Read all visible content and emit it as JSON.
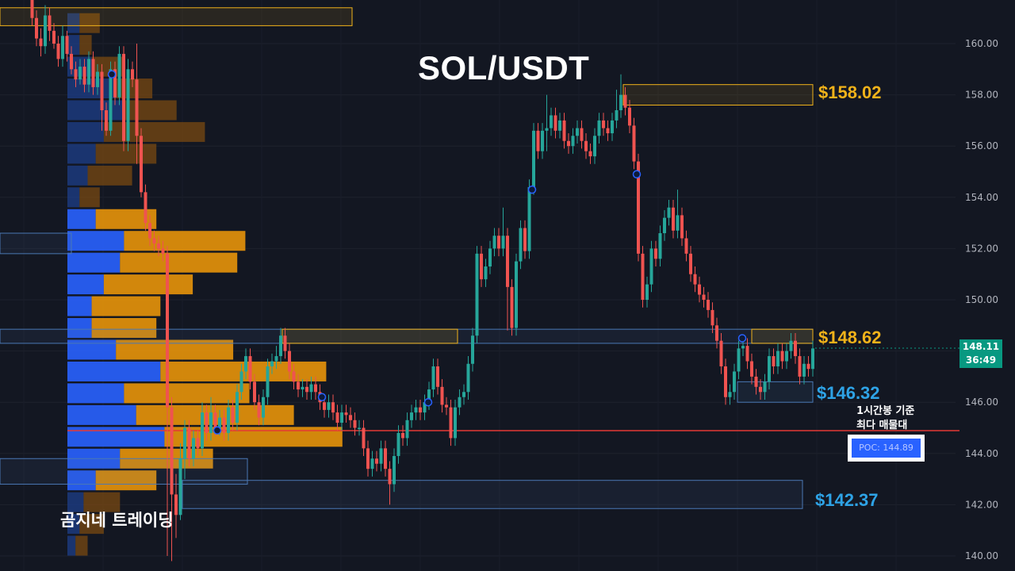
{
  "chart_data": {
    "type": "candlestick",
    "title": "SOL/USDT",
    "watermark": "곰지네 트레이딩",
    "ylim": [
      139.8,
      161.8
    ],
    "y_ticks": [
      "160.00",
      "158.00",
      "156.00",
      "154.00",
      "152.00",
      "150.00",
      "148.00",
      "146.00",
      "144.00",
      "142.00",
      "140.00"
    ],
    "grid": true,
    "current_price": {
      "price": "148.11",
      "countdown": "36:49",
      "value": 148.11
    },
    "levels": [
      {
        "name": "resistance-158",
        "label": "$158.02",
        "price": 158.02,
        "color": "#f0b21a"
      },
      {
        "name": "resistance-148",
        "label": "$148.62",
        "price": 148.62,
        "color": "#f0b21a"
      },
      {
        "name": "support-146",
        "label": "$146.32",
        "price": 146.32,
        "color": "#2ea3e6"
      },
      {
        "name": "support-142",
        "label": "$142.37",
        "price": 142.37,
        "color": "#2ea3e6"
      }
    ],
    "poc": {
      "value": 144.89,
      "label": "POC: 144.89",
      "note_line1": "1시간봉 기준",
      "note_line2": "최다 매물대",
      "color": "#e53935"
    },
    "volume_profile": {
      "bin_prices": [
        160.8,
        159.95,
        159.1,
        158.25,
        157.4,
        156.55,
        155.7,
        154.85,
        154.0,
        153.15,
        152.3,
        151.45,
        150.6,
        149.75,
        148.9,
        148.05,
        147.2,
        146.35,
        145.5,
        144.65,
        143.8,
        142.95,
        142.1,
        141.25,
        140.4
      ],
      "buy": [
        3,
        3,
        6,
        12,
        14,
        9,
        7,
        5,
        3,
        7,
        14,
        13,
        9,
        6,
        6,
        12,
        23,
        14,
        17,
        24,
        13,
        7,
        4,
        3,
        2
      ],
      "sell": [
        5,
        3,
        8,
        9,
        13,
        25,
        15,
        11,
        5,
        15,
        30,
        29,
        22,
        17,
        16,
        29,
        41,
        31,
        39,
        44,
        23,
        15,
        9,
        6,
        3
      ]
    },
    "candles": [
      [
        40.5,
        161.8,
        161.0,
        162.0,
        160.7
      ],
      [
        46.0,
        161.0,
        160.2,
        161.3,
        159.9
      ],
      [
        51.5,
        160.2,
        159.9,
        160.6,
        159.5
      ],
      [
        57.0,
        159.9,
        161.1,
        161.5,
        159.6
      ],
      [
        62.5,
        161.1,
        160.5,
        161.4,
        160.1
      ],
      [
        68.0,
        160.5,
        160.0,
        160.8,
        159.8
      ],
      [
        73.5,
        160.0,
        159.4,
        160.3,
        159.1
      ],
      [
        79.0,
        159.4,
        160.3,
        160.7,
        159.1
      ],
      [
        84.5,
        160.3,
        159.6,
        160.5,
        159.3
      ],
      [
        90.0,
        159.6,
        159.0,
        159.9,
        158.8
      ],
      [
        95.5,
        159.0,
        158.6,
        159.3,
        158.3
      ],
      [
        101.0,
        158.6,
        159.1,
        159.4,
        158.4
      ],
      [
        106.5,
        159.1,
        158.4,
        159.4,
        158.1
      ],
      [
        112.0,
        158.4,
        159.4,
        159.7,
        158.1
      ],
      [
        117.5,
        159.4,
        158.3,
        159.7,
        158.0
      ],
      [
        123.0,
        158.3,
        158.9,
        159.2,
        158.0
      ],
      [
        128.5,
        158.9,
        157.4,
        159.2,
        156.6
      ],
      [
        134.0,
        157.4,
        156.6,
        157.7,
        156.4
      ],
      [
        139.5,
        156.6,
        159.0,
        159.3,
        156.4
      ],
      [
        145.0,
        159.0,
        157.9,
        159.3,
        157.6
      ],
      [
        150.5,
        157.9,
        159.6,
        159.9,
        157.6
      ],
      [
        156.0,
        159.6,
        156.2,
        159.9,
        155.8
      ],
      [
        161.5,
        156.2,
        159.0,
        159.4,
        155.8
      ],
      [
        167.0,
        159.0,
        158.6,
        159.3,
        158.3
      ],
      [
        172.5,
        158.6,
        156.4,
        160.0,
        155.3
      ],
      [
        178.0,
        156.4,
        154.2,
        156.7,
        154.0
      ],
      [
        183.5,
        154.2,
        153.0,
        154.5,
        152.7
      ],
      [
        189.0,
        153.0,
        152.4,
        153.3,
        152.1
      ],
      [
        194.5,
        152.4,
        152.2,
        152.7,
        151.9
      ],
      [
        200.0,
        152.2,
        152.0,
        152.5,
        151.7
      ],
      [
        205.5,
        152.0,
        151.8,
        152.3,
        151.5
      ],
      [
        211.0,
        151.8,
        145.8,
        152.1,
        140.0
      ],
      [
        216.5,
        145.8,
        142.4,
        146.2,
        139.8
      ],
      [
        222.0,
        142.4,
        141.6,
        143.2,
        140.7
      ],
      [
        227.5,
        141.6,
        143.8,
        144.4,
        141.4
      ],
      [
        233.0,
        143.8,
        145.0,
        145.3,
        143.0
      ],
      [
        238.5,
        145.0,
        143.8,
        145.3,
        143.5
      ],
      [
        244.0,
        143.8,
        144.6,
        144.9,
        143.5
      ],
      [
        249.5,
        144.6,
        144.2,
        144.9,
        143.9
      ],
      [
        255.0,
        144.2,
        145.6,
        146.0,
        143.9
      ],
      [
        260.5,
        145.6,
        144.8,
        145.9,
        144.5
      ],
      [
        266.0,
        144.8,
        145.6,
        146.2,
        144.5
      ],
      [
        271.5,
        145.6,
        145.0,
        145.9,
        144.7
      ],
      [
        277.0,
        145.0,
        145.4,
        145.7,
        144.7
      ],
      [
        282.5,
        145.4,
        144.8,
        145.7,
        144.5
      ],
      [
        288.0,
        144.8,
        145.8,
        146.1,
        144.5
      ],
      [
        293.5,
        145.8,
        145.2,
        146.1,
        144.9
      ],
      [
        299.0,
        145.2,
        146.4,
        146.7,
        144.9
      ],
      [
        304.5,
        146.4,
        147.2,
        147.5,
        146.1
      ],
      [
        310.0,
        147.2,
        147.8,
        148.1,
        146.9
      ],
      [
        315.5,
        147.8,
        146.8,
        148.1,
        146.5
      ],
      [
        321.0,
        146.8,
        146.0,
        147.1,
        145.7
      ],
      [
        326.5,
        146.0,
        145.4,
        146.3,
        145.1
      ],
      [
        332.0,
        145.4,
        146.2,
        146.5,
        145.1
      ],
      [
        337.5,
        146.2,
        147.4,
        147.7,
        145.9
      ],
      [
        343.0,
        147.4,
        147.6,
        147.9,
        147.1
      ],
      [
        348.5,
        147.6,
        147.8,
        148.2,
        147.3
      ],
      [
        354.0,
        147.8,
        148.6,
        148.9,
        147.5
      ],
      [
        359.5,
        148.6,
        148.0,
        148.9,
        147.7
      ],
      [
        365.0,
        148.0,
        147.2,
        148.3,
        146.9
      ],
      [
        370.5,
        147.2,
        146.8,
        147.5,
        146.5
      ],
      [
        376.0,
        146.8,
        146.5,
        147.1,
        146.2
      ],
      [
        381.5,
        146.5,
        146.6,
        146.9,
        146.2
      ],
      [
        387.0,
        146.6,
        146.4,
        146.9,
        146.1
      ],
      [
        392.5,
        146.4,
        146.7,
        147.0,
        146.1
      ],
      [
        398.0,
        146.7,
        146.4,
        147.0,
        146.1
      ],
      [
        403.5,
        146.4,
        146.0,
        146.7,
        145.7
      ],
      [
        409.0,
        146.0,
        145.7,
        146.3,
        145.4
      ],
      [
        414.5,
        145.7,
        146.0,
        146.3,
        145.4
      ],
      [
        420.0,
        146.0,
        145.6,
        146.3,
        145.3
      ],
      [
        425.5,
        145.6,
        145.2,
        145.9,
        144.9
      ],
      [
        431.0,
        145.2,
        145.6,
        145.9,
        144.9
      ],
      [
        436.5,
        145.6,
        145.5,
        145.9,
        145.2
      ],
      [
        442.0,
        145.5,
        145.3,
        145.8,
        145.0
      ],
      [
        447.5,
        145.3,
        145.0,
        145.6,
        144.7
      ],
      [
        453.0,
        145.0,
        145.0,
        145.3,
        144.7
      ],
      [
        458.5,
        145.0,
        144.2,
        145.3,
        143.9
      ],
      [
        464.0,
        144.2,
        143.4,
        144.5,
        143.1
      ],
      [
        469.5,
        143.4,
        143.8,
        144.1,
        143.1
      ],
      [
        475.0,
        143.8,
        143.6,
        144.1,
        143.3
      ],
      [
        480.5,
        143.6,
        144.2,
        144.5,
        143.3
      ],
      [
        486.0,
        144.2,
        143.4,
        144.5,
        143.1
      ],
      [
        491.5,
        143.4,
        142.8,
        143.7,
        142.0
      ],
      [
        497.0,
        142.8,
        143.9,
        144.2,
        142.5
      ],
      [
        502.5,
        143.9,
        144.8,
        145.1,
        143.6
      ],
      [
        508.0,
        144.8,
        144.6,
        145.1,
        144.3
      ],
      [
        513.5,
        144.6,
        145.3,
        145.6,
        144.3
      ],
      [
        519.0,
        145.3,
        145.6,
        145.9,
        145.0
      ],
      [
        524.5,
        145.6,
        145.8,
        146.1,
        145.3
      ],
      [
        530.0,
        145.8,
        145.6,
        146.1,
        145.3
      ],
      [
        535.5,
        145.6,
        146.0,
        146.3,
        145.3
      ],
      [
        541.0,
        146.0,
        146.5,
        146.8,
        145.7
      ],
      [
        546.5,
        146.5,
        147.4,
        147.7,
        146.2
      ],
      [
        552.0,
        147.4,
        146.6,
        147.7,
        146.3
      ],
      [
        557.5,
        146.6,
        145.9,
        146.9,
        145.6
      ],
      [
        563.0,
        145.9,
        145.8,
        146.2,
        145.5
      ],
      [
        568.5,
        145.8,
        144.6,
        146.1,
        144.3
      ],
      [
        574.0,
        144.6,
        145.8,
        146.1,
        144.3
      ],
      [
        579.5,
        145.8,
        146.2,
        146.5,
        145.5
      ],
      [
        585.0,
        146.2,
        146.4,
        146.7,
        145.9
      ],
      [
        590.5,
        146.4,
        147.5,
        147.8,
        146.1
      ],
      [
        596.0,
        147.5,
        148.6,
        148.9,
        147.2
      ],
      [
        601.5,
        148.6,
        151.8,
        152.1,
        148.3
      ],
      [
        607.0,
        151.8,
        150.8,
        152.1,
        150.5
      ],
      [
        612.5,
        150.8,
        151.3,
        151.6,
        150.5
      ],
      [
        618.0,
        151.3,
        152.0,
        152.3,
        151.0
      ],
      [
        623.5,
        152.0,
        152.5,
        152.8,
        151.7
      ],
      [
        629.0,
        152.5,
        152.0,
        152.8,
        151.7
      ],
      [
        634.5,
        152.0,
        152.5,
        153.6,
        151.7
      ],
      [
        640.0,
        152.5,
        150.5,
        152.8,
        148.8
      ],
      [
        645.5,
        150.5,
        148.9,
        150.8,
        148.6
      ],
      [
        651.0,
        148.9,
        151.5,
        151.8,
        148.6
      ],
      [
        656.5,
        151.5,
        152.8,
        153.1,
        151.2
      ],
      [
        662.0,
        152.8,
        151.9,
        153.1,
        151.6
      ],
      [
        667.5,
        151.9,
        154.4,
        154.7,
        151.6
      ],
      [
        673.0,
        154.4,
        156.6,
        156.9,
        154.1
      ],
      [
        678.5,
        156.6,
        155.8,
        156.9,
        155.5
      ],
      [
        684.0,
        155.8,
        156.6,
        156.9,
        155.5
      ],
      [
        689.5,
        156.6,
        156.7,
        158.0,
        155.8
      ],
      [
        695.0,
        156.7,
        157.2,
        157.5,
        156.4
      ],
      [
        700.5,
        157.2,
        156.6,
        157.5,
        156.3
      ],
      [
        706.0,
        156.6,
        157.0,
        157.3,
        156.3
      ],
      [
        711.5,
        157.0,
        156.2,
        157.3,
        155.9
      ],
      [
        717.0,
        156.2,
        156.0,
        156.5,
        155.7
      ],
      [
        722.5,
        156.0,
        156.4,
        156.7,
        155.7
      ],
      [
        728.0,
        156.4,
        156.7,
        157.0,
        156.1
      ],
      [
        733.5,
        156.7,
        156.2,
        157.0,
        155.9
      ],
      [
        739.0,
        156.2,
        155.8,
        156.5,
        155.5
      ],
      [
        744.5,
        155.8,
        155.6,
        156.1,
        155.3
      ],
      [
        750.0,
        155.6,
        156.4,
        156.7,
        155.3
      ],
      [
        755.5,
        156.4,
        157.0,
        157.3,
        156.1
      ],
      [
        761.0,
        157.0,
        156.7,
        157.3,
        156.4
      ],
      [
        766.5,
        156.7,
        156.5,
        157.0,
        156.2
      ],
      [
        772.0,
        156.5,
        157.0,
        157.3,
        156.2
      ],
      [
        777.5,
        157.0,
        157.4,
        158.2,
        156.7
      ],
      [
        783.0,
        157.4,
        158.0,
        158.8,
        157.1
      ],
      [
        788.5,
        158.0,
        157.5,
        158.3,
        157.2
      ],
      [
        794.0,
        157.5,
        156.8,
        157.8,
        156.5
      ],
      [
        799.5,
        156.8,
        155.4,
        157.1,
        155.1
      ],
      [
        805.0,
        155.4,
        151.8,
        155.7,
        151.5
      ],
      [
        810.5,
        151.8,
        150.0,
        152.1,
        149.7
      ],
      [
        816.0,
        150.0,
        150.6,
        150.9,
        149.7
      ],
      [
        821.5,
        150.6,
        152.0,
        152.3,
        150.3
      ],
      [
        827.0,
        152.0,
        151.6,
        152.3,
        151.3
      ],
      [
        832.5,
        151.6,
        152.6,
        152.9,
        151.3
      ],
      [
        838.0,
        152.6,
        153.2,
        153.5,
        152.3
      ],
      [
        843.5,
        153.2,
        153.6,
        153.9,
        152.9
      ],
      [
        849.0,
        153.6,
        152.7,
        153.9,
        152.4
      ],
      [
        854.5,
        152.7,
        153.3,
        154.3,
        152.4
      ],
      [
        860.0,
        153.3,
        152.4,
        153.6,
        152.1
      ],
      [
        865.5,
        152.4,
        151.8,
        152.7,
        151.5
      ],
      [
        871.0,
        151.8,
        151.0,
        152.1,
        150.7
      ],
      [
        876.5,
        151.0,
        150.6,
        151.3,
        150.3
      ],
      [
        882.0,
        150.6,
        150.2,
        150.9,
        149.9
      ],
      [
        887.5,
        150.2,
        150.0,
        150.5,
        149.7
      ],
      [
        893.0,
        150.0,
        149.6,
        150.3,
        149.3
      ],
      [
        898.5,
        149.6,
        149.0,
        149.9,
        148.7
      ],
      [
        904.0,
        149.0,
        148.4,
        149.3,
        148.1
      ],
      [
        909.5,
        148.4,
        147.4,
        148.7,
        147.1
      ],
      [
        915.0,
        147.4,
        146.2,
        147.7,
        145.9
      ],
      [
        920.5,
        146.2,
        146.4,
        146.7,
        145.9
      ],
      [
        926.0,
        146.4,
        147.2,
        147.5,
        146.1
      ],
      [
        931.5,
        147.2,
        148.1,
        148.4,
        146.9
      ],
      [
        937.0,
        148.1,
        148.2,
        148.5,
        147.8
      ],
      [
        942.5,
        148.2,
        147.6,
        148.5,
        147.3
      ],
      [
        948.0,
        147.6,
        147.0,
        147.9,
        146.7
      ],
      [
        953.5,
        147.0,
        146.6,
        147.3,
        146.3
      ],
      [
        959.0,
        146.6,
        146.4,
        146.9,
        146.1
      ],
      [
        964.5,
        146.4,
        146.8,
        147.1,
        146.1
      ],
      [
        970.0,
        146.8,
        147.8,
        148.1,
        146.5
      ],
      [
        975.5,
        147.8,
        147.4,
        148.1,
        147.1
      ],
      [
        981.0,
        147.4,
        148.0,
        148.3,
        147.1
      ],
      [
        986.5,
        148.0,
        147.6,
        148.3,
        147.3
      ],
      [
        992.0,
        147.6,
        148.0,
        148.3,
        147.3
      ],
      [
        997.5,
        148.0,
        148.4,
        148.7,
        147.7
      ],
      [
        1003.0,
        148.4,
        147.8,
        148.7,
        147.5
      ],
      [
        1008.5,
        147.8,
        147.0,
        148.1,
        146.7
      ],
      [
        1014.0,
        147.0,
        147.5,
        147.8,
        146.7
      ],
      [
        1019.5,
        147.5,
        147.3,
        147.8,
        147.0
      ],
      [
        1025.0,
        147.3,
        148.1,
        148.4,
        147.0
      ]
    ],
    "signal_markers": [
      [
        141,
        158.8
      ],
      [
        274,
        144.9
      ],
      [
        406,
        146.2
      ],
      [
        540,
        146.0
      ],
      [
        671,
        154.3
      ],
      [
        803,
        154.9
      ],
      [
        936,
        148.5
      ]
    ]
  },
  "ui": {
    "price_axis_color": "#b2b5be",
    "up_color": "#26a69a",
    "down_color": "#ef5350"
  }
}
